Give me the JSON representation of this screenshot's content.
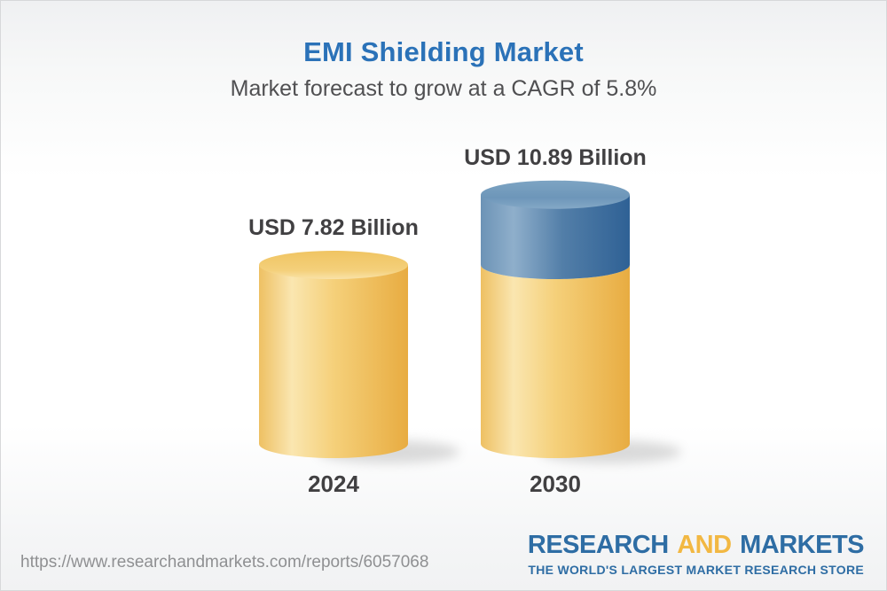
{
  "header": {
    "title": "EMI Shielding Market",
    "subtitle": "Market forecast to grow at a CAGR of 5.8%"
  },
  "chart_data": {
    "type": "bar",
    "subtype": "3d-cylinder",
    "title": "EMI Shielding Market",
    "categories": [
      "2024",
      "2030"
    ],
    "values": [
      7.82,
      10.89
    ],
    "value_labels": [
      "USD 7.82 Billion",
      "USD 10.89 Billion"
    ],
    "unit": "USD Billion",
    "cagr_pct": 5.8,
    "colors": {
      "base_segment": "#F2C876",
      "growth_segment": "#5C89B0",
      "label_text": "#414042"
    },
    "notes": "2030 cylinder shows the 2024 base level in gold with the incremental growth segment in blue stacked on top"
  },
  "footer": {
    "url": "https://www.researchandmarkets.com/reports/6057068",
    "logo": {
      "word1": "RESEARCH",
      "word2": "AND",
      "word3": "MARKETS",
      "tagline": "THE WORLD'S LARGEST MARKET RESEARCH STORE",
      "blue": "#2E6DA4",
      "gold": "#F2B843"
    }
  }
}
